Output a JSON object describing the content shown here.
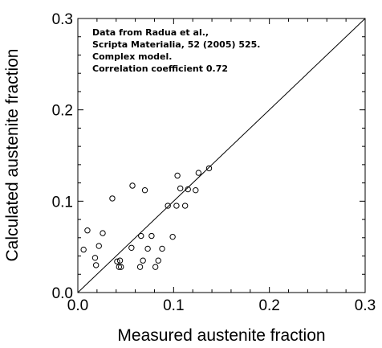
{
  "chart_data": {
    "type": "scatter",
    "xlabel": "Measured austenite fraction",
    "ylabel": "Calculated austenite fraction",
    "xlim": [
      0,
      0.3
    ],
    "ylim": [
      0,
      0.3
    ],
    "x_ticks": [
      "0.0",
      "0.1",
      "0.2",
      "0.3"
    ],
    "y_ticks": [
      "0.0",
      "0.1",
      "0.2",
      "0.3"
    ],
    "grid": false,
    "reference_line": {
      "x": [
        0,
        0.3
      ],
      "y": [
        0,
        0.3
      ]
    },
    "annotation": [
      "Data from Radua et al.,",
      "Scripta Materialia, 52 (2005) 525.",
      "Complex model.",
      "Correlation coefficient 0.72"
    ],
    "marker": "open-circle",
    "colors": {
      "axis": "#000000",
      "marker": "#000000",
      "background": "#ffffff"
    },
    "series": [
      {
        "x": [
          0.006,
          0.01,
          0.019,
          0.018,
          0.022,
          0.026,
          0.036,
          0.041,
          0.043,
          0.044,
          0.045,
          0.056,
          0.057,
          0.065,
          0.066,
          0.068,
          0.07,
          0.073,
          0.077,
          0.081,
          0.084,
          0.088,
          0.094,
          0.099,
          0.103,
          0.104,
          0.107,
          0.112,
          0.115,
          0.123,
          0.126,
          0.137
        ],
        "y": [
          0.047,
          0.068,
          0.03,
          0.038,
          0.051,
          0.065,
          0.103,
          0.034,
          0.028,
          0.035,
          0.028,
          0.049,
          0.117,
          0.028,
          0.062,
          0.035,
          0.112,
          0.048,
          0.062,
          0.028,
          0.035,
          0.048,
          0.095,
          0.061,
          0.095,
          0.128,
          0.114,
          0.095,
          0.113,
          0.112,
          0.131,
          0.136
        ]
      }
    ]
  }
}
